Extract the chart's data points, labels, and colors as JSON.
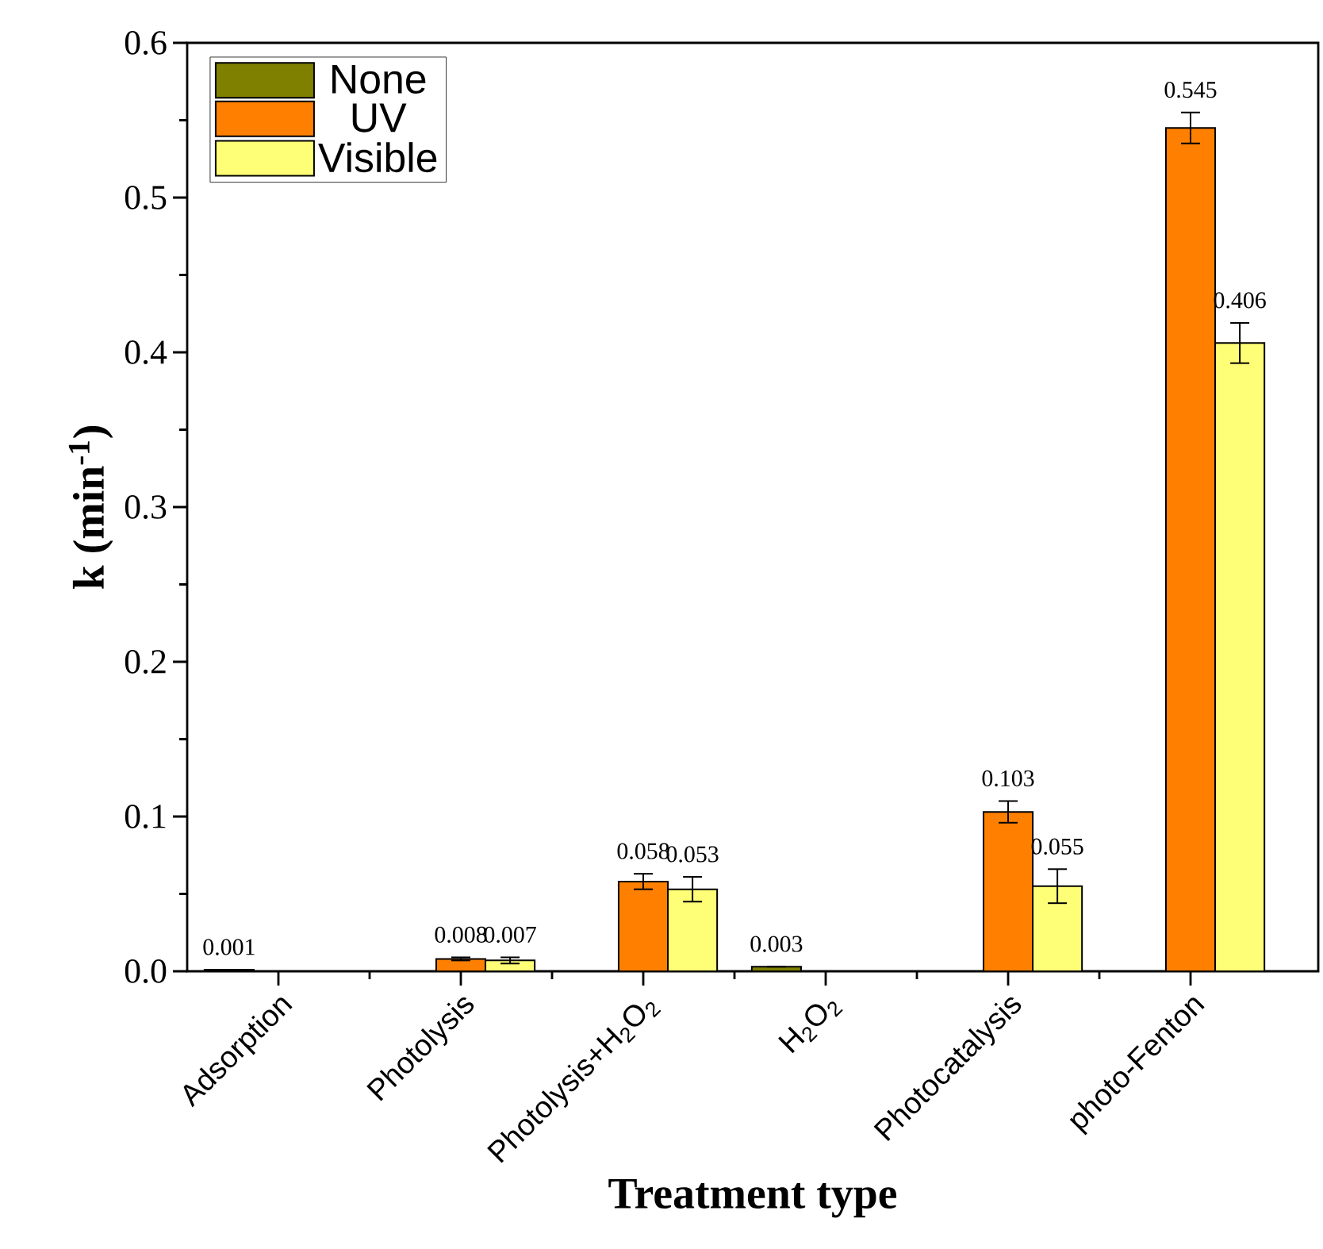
{
  "chart_data": {
    "type": "bar",
    "xlabel": "Treatment type",
    "ylabel": "k (min$^{-1}$)",
    "categories": [
      "Adsorption",
      "Photolysis",
      "Photolysis+H$_{2}$O$_{2}$",
      "H$_{2}$O$_{2}$",
      "Photocatalysis",
      "photo-Fenton"
    ],
    "series": [
      {
        "name": "None",
        "color": "#808000",
        "values": [
          0.001,
          null,
          null,
          0.003,
          null,
          null
        ],
        "errors": [
          null,
          null,
          null,
          null,
          null,
          null
        ]
      },
      {
        "name": "UV",
        "color": "#ff8000",
        "values": [
          null,
          0.008,
          0.058,
          null,
          0.103,
          0.545
        ],
        "errors": [
          null,
          0.001,
          0.005,
          null,
          0.007,
          0.01
        ]
      },
      {
        "name": "Visible",
        "color": "#ffff77",
        "values": [
          null,
          0.007,
          0.053,
          null,
          0.055,
          0.406
        ],
        "errors": [
          null,
          0.002,
          0.008,
          null,
          0.011,
          0.013
        ]
      }
    ],
    "ylim": [
      0,
      0.6
    ],
    "yticks": [
      {
        "value": 0,
        "label": "0.0"
      },
      0.1,
      0.2,
      0.3,
      0.4,
      0.5,
      0.6
    ],
    "data_labels": true,
    "legend": "top left",
    "grid": false
  }
}
